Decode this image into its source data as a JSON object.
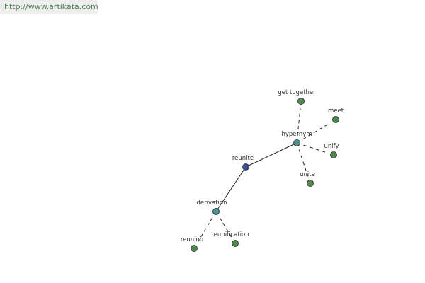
{
  "header": {
    "url": "http://www.artikata.com"
  },
  "nodes": [
    {
      "label": "reunite"
    },
    {
      "label": "hypernym"
    },
    {
      "label": "derivation"
    },
    {
      "label": "get together"
    },
    {
      "label": "meet"
    },
    {
      "label": "unify"
    },
    {
      "label": "unite"
    },
    {
      "label": "reunion"
    },
    {
      "label": "reunification"
    }
  ]
}
